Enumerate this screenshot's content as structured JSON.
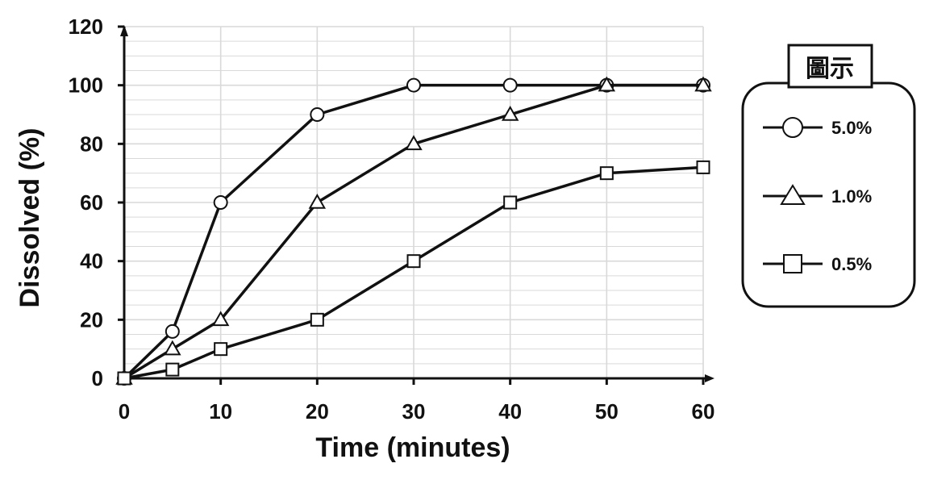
{
  "chart_data": {
    "type": "line",
    "xlabel": "Time (minutes)",
    "ylabel": "Dissolved (%)",
    "x": [
      0,
      5,
      10,
      20,
      30,
      40,
      50,
      60
    ],
    "x_ticks": [
      "0",
      "10",
      "20",
      "30",
      "40",
      "50",
      "60"
    ],
    "y_ticks": [
      "0",
      "20",
      "40",
      "60",
      "80",
      "100",
      "120"
    ],
    "xlim": [
      0,
      60
    ],
    "ylim": [
      0,
      120
    ],
    "grid": true,
    "legend": {
      "title": "圖示",
      "placement": "right"
    },
    "series": [
      {
        "name": "5.0%",
        "marker": "circle",
        "values": [
          0,
          16,
          60,
          90,
          100,
          100,
          100,
          100
        ]
      },
      {
        "name": "1.0%",
        "marker": "triangle",
        "values": [
          0,
          10,
          20,
          60,
          80,
          90,
          100,
          100
        ]
      },
      {
        "name": "0.5%",
        "marker": "square",
        "values": [
          0,
          3,
          10,
          20,
          40,
          60,
          70,
          72
        ]
      }
    ],
    "colors": {
      "line": "#111111",
      "marker_fill": "#ffffff",
      "grid": "#d9d9d9"
    }
  }
}
